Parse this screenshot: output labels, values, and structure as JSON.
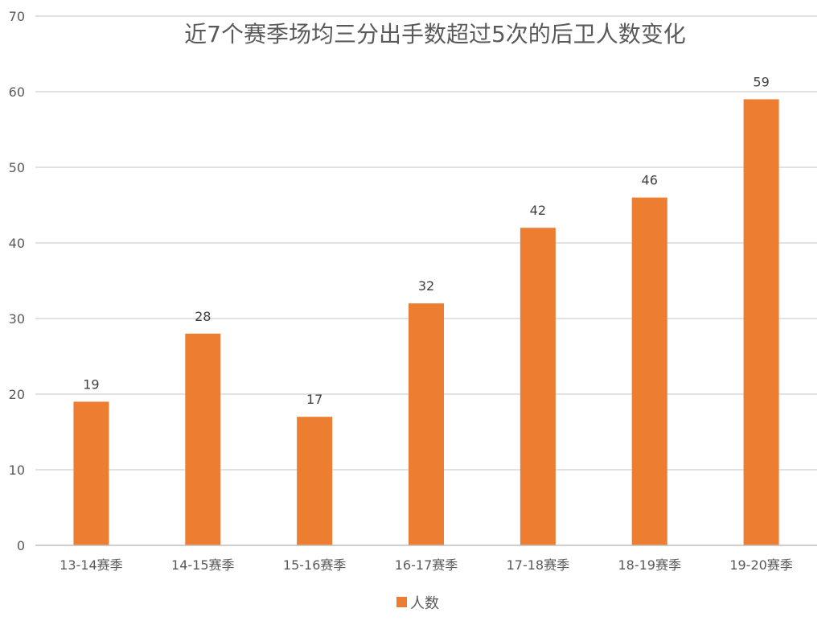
{
  "chart_data": {
    "type": "bar",
    "title": "近7个赛季场均三分出手数超过5次的后卫人数变化",
    "categories": [
      "13-14赛季",
      "14-15赛季",
      "15-16赛季",
      "16-17赛季",
      "17-18赛季",
      "18-19赛季",
      "19-20赛季"
    ],
    "series": [
      {
        "name": "人数",
        "values": [
          19,
          28,
          17,
          32,
          42,
          46,
          59
        ],
        "color": "#ED7D31"
      }
    ],
    "ylim": [
      0,
      70
    ],
    "yticks": [
      0,
      10,
      20,
      30,
      40,
      50,
      60,
      70
    ],
    "grid": true,
    "legend": "bottom",
    "data_labels": true,
    "xlabel": "",
    "ylabel": ""
  }
}
